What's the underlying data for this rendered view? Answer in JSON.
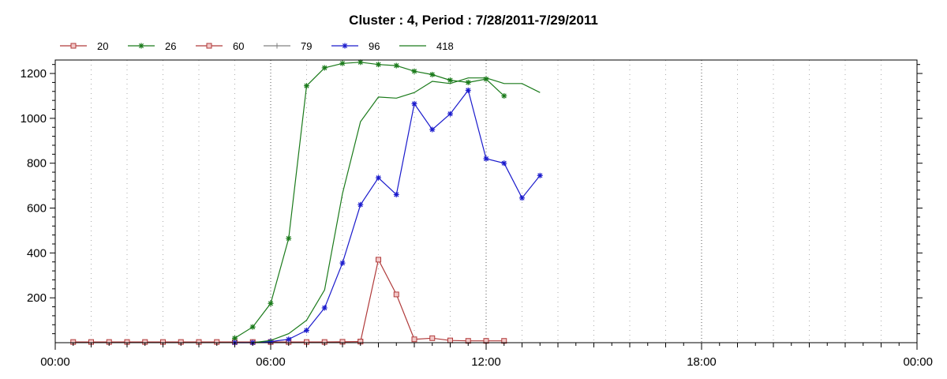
{
  "chart_data": {
    "type": "line",
    "title": "Cluster : 4, Period : 7/28/2011-7/29/2011",
    "xlabel": "",
    "ylabel": "",
    "x_unit": "hours",
    "xlim": [
      0,
      24
    ],
    "ylim": [
      0,
      1260
    ],
    "x_ticks": [
      {
        "value": 0,
        "label": "00:00"
      },
      {
        "value": 6,
        "label": "06:00"
      },
      {
        "value": 12,
        "label": "12:00"
      },
      {
        "value": 18,
        "label": "18:00"
      },
      {
        "value": 24,
        "label": "00:00"
      }
    ],
    "y_ticks": [
      200,
      400,
      600,
      800,
      1000,
      1200
    ],
    "grid": true,
    "legend_position": "top-left",
    "series": [
      {
        "name": "20",
        "color": "#b03a3a",
        "marker": "square",
        "x": [
          0.5,
          1.0,
          1.5,
          2.0,
          2.5,
          3.0,
          3.5,
          4.0,
          4.5,
          5.0,
          5.5,
          6.0,
          6.5,
          7.0,
          7.5,
          8.0,
          8.5
        ],
        "y": [
          3,
          3,
          3,
          3,
          3,
          3,
          3,
          3,
          3,
          3,
          3,
          3,
          3,
          3,
          3,
          4,
          5
        ]
      },
      {
        "name": "26",
        "color": "#1a7a1a",
        "marker": "asterisk",
        "x": [
          5.0,
          5.5,
          6.0,
          6.5,
          7.0,
          7.5,
          8.0,
          8.5,
          9.0,
          9.5,
          10.0,
          10.5,
          11.0,
          11.5,
          12.0,
          12.5
        ],
        "y": [
          20,
          70,
          175,
          465,
          1145,
          1225,
          1245,
          1250,
          1240,
          1235,
          1210,
          1195,
          1170,
          1160,
          1175,
          1100
        ]
      },
      {
        "name": "60",
        "color": "#b03a3a",
        "marker": "square",
        "x": [
          8.5,
          9.0,
          9.5,
          10.0,
          10.5,
          11.0,
          11.5,
          12.0,
          12.5
        ],
        "y": [
          5,
          370,
          215,
          15,
          20,
          10,
          8,
          8,
          8
        ]
      },
      {
        "name": "79",
        "color": "#808080",
        "marker": "plus",
        "x": [],
        "y": []
      },
      {
        "name": "96",
        "color": "#1a1acc",
        "marker": "asterisk",
        "x": [
          5.0,
          5.5,
          6.0,
          6.5,
          7.0,
          7.5,
          8.0,
          8.5,
          9.0,
          9.5,
          10.0,
          10.5,
          11.0,
          11.5,
          12.0,
          12.5,
          13.0,
          13.5
        ],
        "y": [
          0,
          0,
          5,
          15,
          55,
          155,
          355,
          615,
          735,
          660,
          1065,
          950,
          1020,
          1125,
          820,
          800,
          645,
          745
        ]
      },
      {
        "name": "418",
        "color": "#1a7a1a",
        "marker": "none",
        "x": [
          5.5,
          6.0,
          6.5,
          7.0,
          7.5,
          8.0,
          8.5,
          9.0,
          9.5,
          10.0,
          10.5,
          11.0,
          11.5,
          12.0,
          12.5,
          13.0,
          13.5
        ],
        "y": [
          0,
          10,
          40,
          100,
          235,
          665,
          985,
          1095,
          1090,
          1115,
          1165,
          1155,
          1180,
          1180,
          1155,
          1155,
          1115
        ]
      }
    ]
  }
}
